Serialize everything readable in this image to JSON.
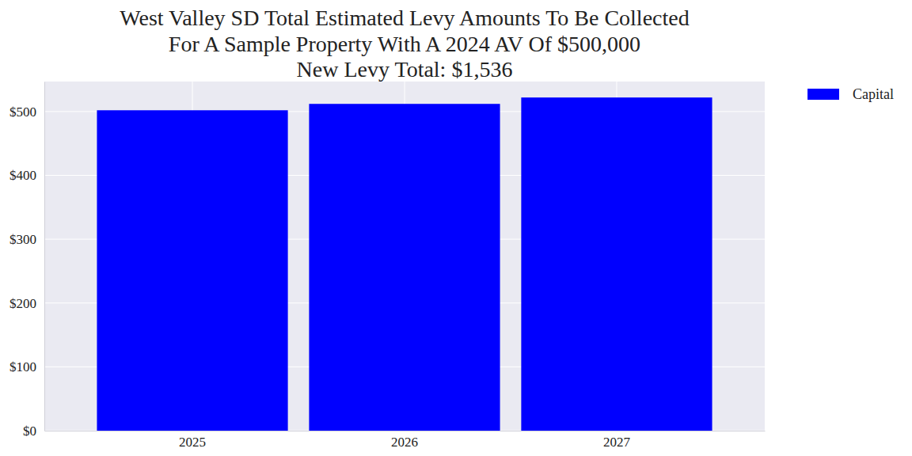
{
  "chart_data": {
    "type": "bar",
    "title": [
      "West Valley SD Total Estimated Levy Amounts To Be Collected",
      "For A Sample Property With A 2024 AV Of $500,000",
      "New Levy Total: $1,536"
    ],
    "categories": [
      "2025",
      "2026",
      "2027"
    ],
    "series": [
      {
        "name": "Capital",
        "color": "#0000ff",
        "values": [
          502,
          512,
          522
        ]
      }
    ],
    "ylim": [
      0,
      547
    ],
    "yticks": [
      {
        "value": 0,
        "label": "$0"
      },
      {
        "value": 100,
        "label": "$100"
      },
      {
        "value": 200,
        "label": "$200"
      },
      {
        "value": 300,
        "label": "$300"
      },
      {
        "value": 400,
        "label": "$400"
      },
      {
        "value": 500,
        "label": "$500"
      }
    ],
    "grid": true,
    "legend": "right"
  }
}
